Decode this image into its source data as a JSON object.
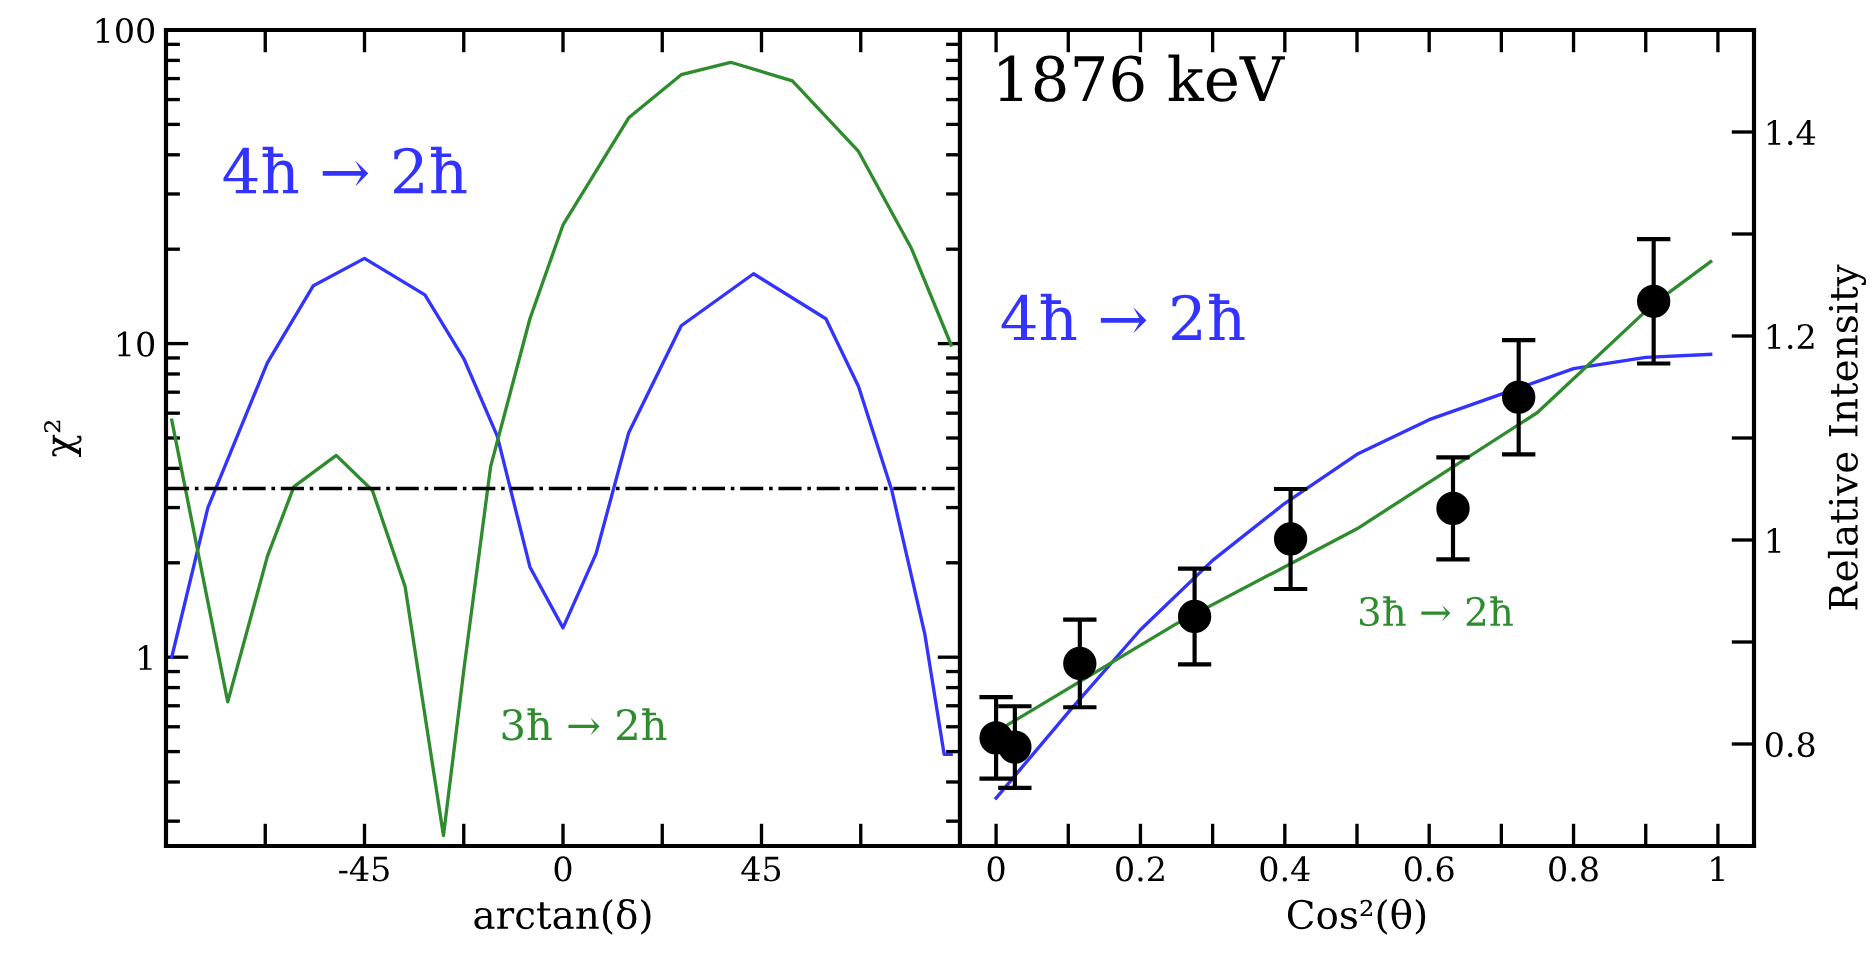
{
  "chart_data": [
    {
      "type": "line",
      "xlabel": "arctan(δ)",
      "ylabel": "χ²",
      "log": "y",
      "xlim": [
        -90,
        90
      ],
      "ylim": [
        0.25,
        100
      ],
      "xticks": [
        {
          "value": -67.5,
          "label": null
        },
        -45,
        {
          "value": -22.5,
          "label": null
        },
        0,
        {
          "value": 22.5,
          "label": null
        },
        45,
        {
          "value": 67.5,
          "label": null
        }
      ],
      "yticks": [
        1,
        10,
        100
      ],
      "series": [
        {
          "name": "4ħ → 2ħ",
          "color": "#3333ff",
          "x": [
            -88.7,
            -80.5,
            -67,
            -56.6,
            -45,
            -31.3,
            -22.4,
            -14.9,
            -7.5,
            0,
            7.5,
            14.9,
            26.8,
            43.2,
            59.6,
            67,
            74.5,
            82,
            86.4,
            88
          ],
          "values": [
            1.0,
            3.0,
            8.7,
            15.3,
            18.7,
            14.3,
            8.9,
            5.07,
            1.94,
            1.24,
            2.14,
            5.2,
            11.4,
            16.7,
            12.0,
            7.3,
            3.42,
            1.19,
            0.49,
            0.49
          ]
        },
        {
          "name": "3ħ → 2ħ",
          "color": "#2e8b2e",
          "x": [
            -88.7,
            -76,
            -67,
            -61,
            -51.4,
            -43.2,
            -35.8,
            -27.1,
            -22.4,
            -16.4,
            -7.5,
            0,
            14.9,
            26.8,
            38,
            52,
            67,
            79,
            88
          ],
          "values": [
            5.7,
            0.72,
            2.1,
            3.5,
            4.4,
            3.4,
            1.68,
            0.27,
            0.93,
            4.06,
            12.0,
            23.9,
            52.5,
            72,
            78.9,
            68.8,
            41,
            20.1,
            9.9
          ]
        }
      ],
      "ref_lines": [
        {
          "axis": "y",
          "value": 3.45,
          "color": "#000000",
          "line_style": "dashdot"
        }
      ]
    },
    {
      "type": "line",
      "xlabel": "Cos²(θ)",
      "ylabel": "Relative Intensity",
      "annotations": [
        "1876 keV"
      ],
      "xlim": [
        -0.05,
        1.05
      ],
      "ylim": [
        0.7,
        1.5
      ],
      "xticks": [
        0,
        {
          "value": 0.1,
          "label": null
        },
        0.2,
        {
          "value": 0.3,
          "label": null
        },
        0.4,
        {
          "value": 0.5,
          "label": null
        },
        0.6,
        {
          "value": 0.7,
          "label": null
        },
        0.8,
        {
          "value": 0.9,
          "label": null
        },
        1
      ],
      "yticks": [
        0.8,
        {
          "value": 0.9,
          "label": null
        },
        1,
        {
          "value": 1.1,
          "label": null
        },
        1.2,
        {
          "value": 1.3,
          "label": null
        },
        1.4
      ],
      "series": [
        {
          "type": "scatter",
          "color": "#000000",
          "marker": "circle",
          "x": [
            0.0,
            0.026,
            0.116,
            0.275,
            0.408,
            0.633,
            0.724,
            0.911
          ],
          "values": [
            0.806,
            0.797,
            0.879,
            0.925,
            1.001,
            1.031,
            1.14,
            1.234
          ],
          "errors": [
            0.04,
            0.04,
            0.043,
            0.047,
            0.049,
            0.05,
            0.056,
            0.061
          ]
        },
        {
          "name": "4ħ → 2ħ",
          "color": "#3333ff",
          "x": [
            0,
            0.1,
            0.2,
            0.3,
            0.4,
            0.5,
            0.6,
            0.7,
            0.8,
            0.9,
            0.99
          ],
          "values": [
            0.747,
            0.831,
            0.912,
            0.98,
            1.036,
            1.084,
            1.118,
            1.143,
            1.168,
            1.179,
            1.182
          ]
        },
        {
          "name": "3ħ → 2ħ",
          "color": "#2e8b2e",
          "x": [
            0,
            0.25,
            0.5,
            0.75,
            0.91,
            0.99
          ],
          "values": [
            0.812,
            0.918,
            1.011,
            1.125,
            1.231,
            1.273
          ]
        }
      ]
    }
  ]
}
